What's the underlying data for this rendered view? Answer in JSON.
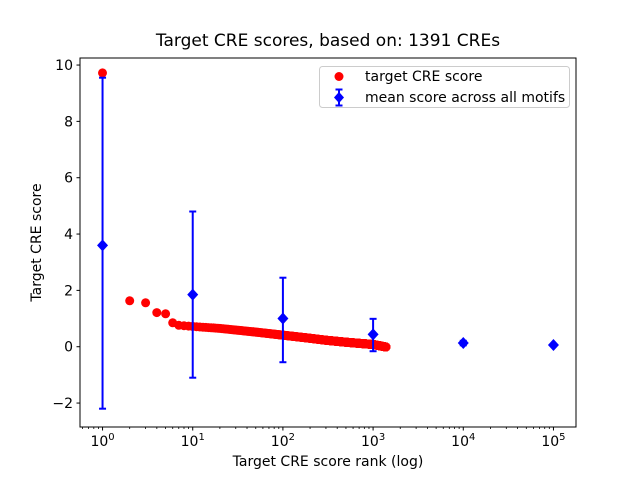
{
  "figure": {
    "title": "Target CRE scores, based on: 1391 CREs",
    "x_axis": {
      "label": "Target CRE score rank (log)",
      "scale": "log"
    },
    "y_axis": {
      "label": "Target CRE score"
    }
  },
  "legend": {
    "position": "upper right",
    "items": [
      {
        "label": "target CRE score",
        "marker": "circle",
        "color": "#ff0000"
      },
      {
        "label": "mean score across all motifs",
        "marker": "diamond-errorbar",
        "color": "#0000ff"
      }
    ]
  },
  "chart_data": {
    "type": "scatter",
    "title": "Target CRE scores, based on: 1391 CREs",
    "xlabel": "Target CRE score rank (log)",
    "ylabel": "Target CRE score",
    "x_scale": "log",
    "xlim_log10": [
      -0.25,
      5.25
    ],
    "ylim": [
      -2.85,
      10.25
    ],
    "x_tick_exponents": [
      0,
      1,
      2,
      3,
      4,
      5
    ],
    "x_minor_tick_multiples": [
      2,
      3,
      4,
      5,
      6,
      7,
      8,
      9
    ],
    "y_ticks": [
      -2,
      0,
      2,
      4,
      6,
      8,
      10
    ],
    "grid": false,
    "series": [
      {
        "name": "target CRE score",
        "marker": "circle",
        "color": "#ff0000",
        "marker_radius_px": 4.5,
        "n_points": 1391,
        "interpolation": "log-linear",
        "anchor_points_rank_score": [
          [
            1,
            9.72
          ],
          [
            2,
            1.63
          ],
          [
            3,
            1.56
          ],
          [
            4,
            1.21
          ],
          [
            5,
            1.17
          ],
          [
            6,
            0.85
          ],
          [
            7,
            0.76
          ],
          [
            10,
            0.72
          ],
          [
            20,
            0.65
          ],
          [
            50,
            0.52
          ],
          [
            100,
            0.41
          ],
          [
            200,
            0.3
          ],
          [
            300,
            0.23
          ],
          [
            500,
            0.16
          ],
          [
            700,
            0.12
          ],
          [
            1000,
            0.08
          ],
          [
            1200,
            0.03
          ],
          [
            1391,
            -0.01
          ]
        ]
      },
      {
        "name": "mean score across all motifs",
        "marker": "diamond",
        "color": "#0000ff",
        "error_bars": true,
        "points": [
          {
            "rank": 1,
            "mean": 3.6,
            "lo": -2.2,
            "hi": 9.55
          },
          {
            "rank": 10,
            "mean": 1.85,
            "lo": -1.1,
            "hi": 4.8
          },
          {
            "rank": 100,
            "mean": 1.0,
            "lo": -0.55,
            "hi": 2.45
          },
          {
            "rank": 1000,
            "mean": 0.44,
            "lo": -0.16,
            "hi": 0.99
          },
          {
            "rank": 10000,
            "mean": 0.13,
            "lo": 0.05,
            "hi": 0.21
          },
          {
            "rank": 100000,
            "mean": 0.06,
            "lo": 0.02,
            "hi": 0.1
          }
        ]
      }
    ]
  }
}
